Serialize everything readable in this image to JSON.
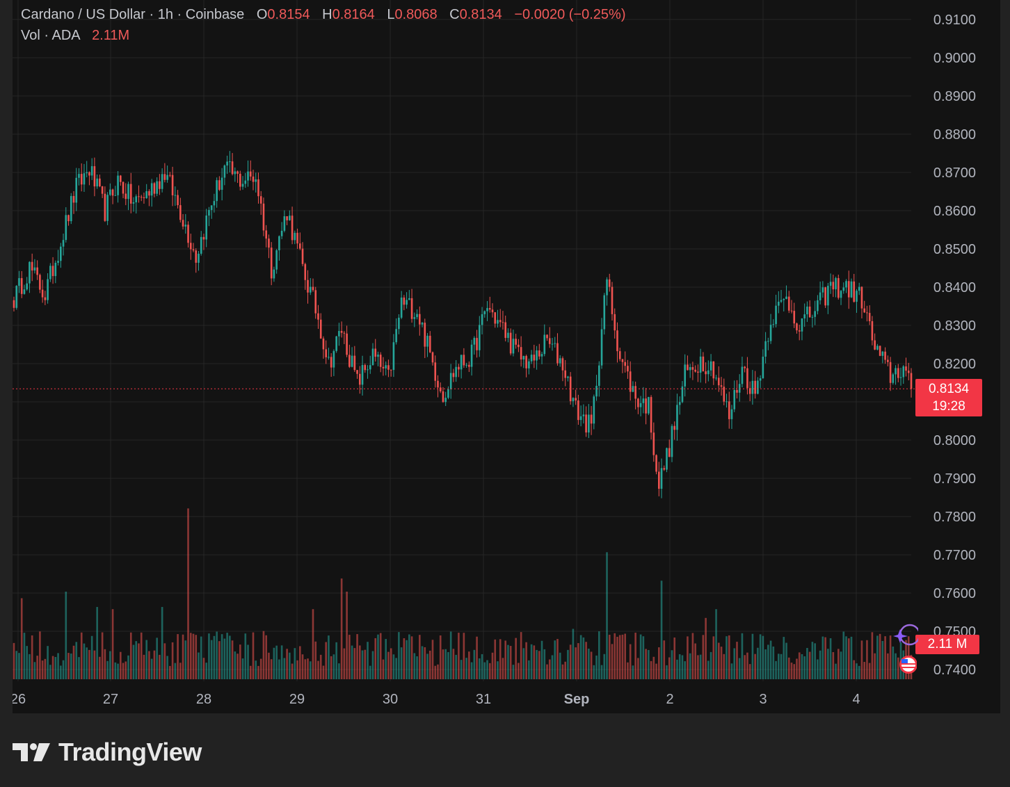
{
  "legend": {
    "symbol": "Cardano / US Dollar · 1h · Coinbase",
    "open_label": "O",
    "open": "0.8154",
    "high_label": "H",
    "high": "0.8164",
    "low_label": "L",
    "low": "0.8068",
    "close_label": "C",
    "close": "0.8134",
    "change": "−0.0020 (−0.25%)",
    "vol_label": "Vol · ADA",
    "vol_value": "2.11M"
  },
  "price_tag": {
    "price": "0.8134",
    "countdown": "19:28"
  },
  "volume_tag": "2.11 M",
  "brand": {
    "name": "TradingView"
  },
  "colors": {
    "up": "#26a69a",
    "down": "#ef5350",
    "background": "#131313",
    "grid": "#262626",
    "axis_text": "#b2b5be",
    "price_line": "#f23645"
  },
  "chart_data": {
    "type": "candlestick",
    "title": "Cardano / US Dollar · 1h · Coinbase",
    "y_axis": {
      "ticks": [
        "0.9100",
        "0.9000",
        "0.8900",
        "0.8800",
        "0.8700",
        "0.8600",
        "0.8500",
        "0.8400",
        "0.8300",
        "0.8200",
        "0.8100",
        "0.8000",
        "0.7900",
        "0.7800",
        "0.7700",
        "0.7600",
        "0.7500",
        "0.7400"
      ],
      "range": [
        0.736,
        0.915
      ]
    },
    "x_axis": {
      "ticks": [
        "26",
        "27",
        "28",
        "29",
        "30",
        "31",
        "Sep",
        "2",
        "3",
        "4"
      ]
    },
    "current_price": 0.8134,
    "grid": true,
    "anchors": [
      {
        "i": 0,
        "p": 0.837
      },
      {
        "i": 6,
        "p": 0.845
      },
      {
        "i": 12,
        "p": 0.838
      },
      {
        "i": 18,
        "p": 0.852
      },
      {
        "i": 24,
        "p": 0.866
      },
      {
        "i": 29,
        "p": 0.871
      },
      {
        "i": 35,
        "p": 0.86
      },
      {
        "i": 40,
        "p": 0.868
      },
      {
        "i": 46,
        "p": 0.862
      },
      {
        "i": 52,
        "p": 0.865
      },
      {
        "i": 58,
        "p": 0.87
      },
      {
        "i": 64,
        "p": 0.86
      },
      {
        "i": 70,
        "p": 0.848
      },
      {
        "i": 76,
        "p": 0.862
      },
      {
        "i": 81,
        "p": 0.871
      },
      {
        "i": 87,
        "p": 0.868
      },
      {
        "i": 93,
        "p": 0.869
      },
      {
        "i": 99,
        "p": 0.845
      },
      {
        "i": 105,
        "p": 0.86
      },
      {
        "i": 111,
        "p": 0.845
      },
      {
        "i": 117,
        "p": 0.832
      },
      {
        "i": 121,
        "p": 0.82
      },
      {
        "i": 126,
        "p": 0.829
      },
      {
        "i": 132,
        "p": 0.815
      },
      {
        "i": 138,
        "p": 0.822
      },
      {
        "i": 144,
        "p": 0.816
      },
      {
        "i": 149,
        "p": 0.836
      },
      {
        "i": 155,
        "p": 0.834
      },
      {
        "i": 161,
        "p": 0.82
      },
      {
        "i": 165,
        "p": 0.812
      },
      {
        "i": 170,
        "p": 0.819
      },
      {
        "i": 176,
        "p": 0.822
      },
      {
        "i": 182,
        "p": 0.835
      },
      {
        "i": 188,
        "p": 0.829
      },
      {
        "i": 194,
        "p": 0.822
      },
      {
        "i": 199,
        "p": 0.82
      },
      {
        "i": 205,
        "p": 0.826
      },
      {
        "i": 211,
        "p": 0.82
      },
      {
        "i": 216,
        "p": 0.808
      },
      {
        "i": 222,
        "p": 0.803
      },
      {
        "i": 228,
        "p": 0.842
      },
      {
        "i": 233,
        "p": 0.822
      },
      {
        "i": 239,
        "p": 0.811
      },
      {
        "i": 244,
        "p": 0.809
      },
      {
        "i": 248,
        "p": 0.788
      },
      {
        "i": 253,
        "p": 0.801
      },
      {
        "i": 258,
        "p": 0.817
      },
      {
        "i": 264,
        "p": 0.821
      },
      {
        "i": 269,
        "p": 0.819
      },
      {
        "i": 275,
        "p": 0.806
      },
      {
        "i": 280,
        "p": 0.819
      },
      {
        "i": 285,
        "p": 0.812
      },
      {
        "i": 291,
        "p": 0.832
      },
      {
        "i": 297,
        "p": 0.837
      },
      {
        "i": 302,
        "p": 0.83
      },
      {
        "i": 308,
        "p": 0.834
      },
      {
        "i": 314,
        "p": 0.84
      },
      {
        "i": 320,
        "p": 0.84
      },
      {
        "i": 326,
        "p": 0.837
      },
      {
        "i": 331,
        "p": 0.824
      },
      {
        "i": 337,
        "p": 0.817
      },
      {
        "i": 342,
        "p": 0.819
      },
      {
        "i": 345,
        "p": 0.8134
      }
    ],
    "volume_spikes": [
      {
        "i": 67,
        "v": 0.78
      },
      {
        "i": 228,
        "v": 0.58
      },
      {
        "i": 249,
        "v": 0.45
      },
      {
        "i": 126,
        "v": 0.46
      },
      {
        "i": 128,
        "v": 0.4
      },
      {
        "i": 20,
        "v": 0.4
      },
      {
        "i": 3,
        "v": 0.37
      },
      {
        "i": 38,
        "v": 0.32
      },
      {
        "i": 32,
        "v": 0.33
      },
      {
        "i": 57,
        "v": 0.33
      },
      {
        "i": 115,
        "v": 0.32
      },
      {
        "i": 270,
        "v": 0.32
      },
      {
        "i": 266,
        "v": 0.28
      },
      {
        "i": 215,
        "v": 0.23
      },
      {
        "i": 280,
        "v": 0.21
      },
      {
        "i": 96,
        "v": 0.22
      }
    ]
  }
}
